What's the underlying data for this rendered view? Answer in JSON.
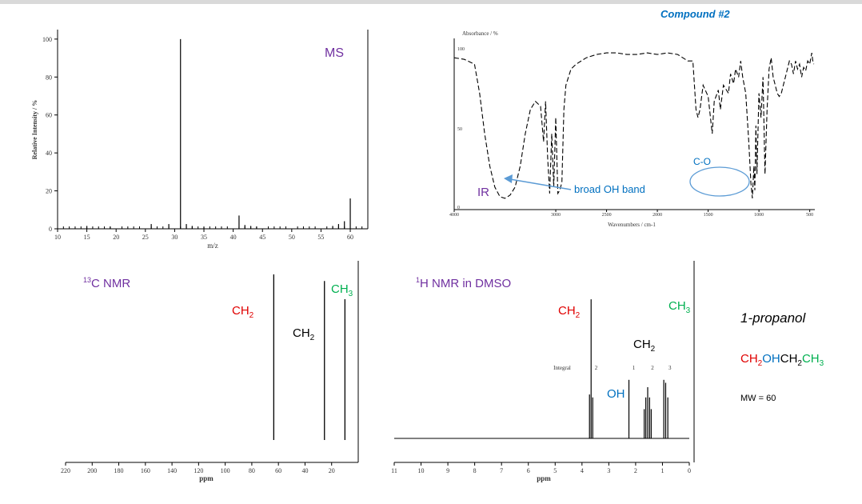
{
  "header": {
    "compound": "Compound #2",
    "compound_color": "#0070c0"
  },
  "chart_data": [
    {
      "type": "bar",
      "name": "MS",
      "title": "MS",
      "xlabel": "m/z",
      "ylabel": "Relative Intensity / %",
      "xlim": [
        10,
        63
      ],
      "ylim": [
        0,
        105
      ],
      "xticks": [
        "10",
        "15",
        "20",
        "25",
        "30",
        "35",
        "40",
        "45",
        "50",
        "55",
        "60"
      ],
      "yticks": [
        "0",
        "20",
        "40",
        "60",
        "80",
        "100"
      ],
      "peaks": [
        {
          "x": 15,
          "y": 1.5
        },
        {
          "x": 19,
          "y": 1.2
        },
        {
          "x": 26,
          "y": 2.5
        },
        {
          "x": 29,
          "y": 2.5
        },
        {
          "x": 31,
          "y": 100
        },
        {
          "x": 32,
          "y": 2.5
        },
        {
          "x": 33,
          "y": 1.5
        },
        {
          "x": 35,
          "y": 1.2
        },
        {
          "x": 41,
          "y": 7
        },
        {
          "x": 42,
          "y": 2
        },
        {
          "x": 43,
          "y": 1.5
        },
        {
          "x": 44,
          "y": 1.2
        },
        {
          "x": 57,
          "y": 1.5
        },
        {
          "x": 58,
          "y": 2.5
        },
        {
          "x": 59,
          "y": 4
        },
        {
          "x": 60,
          "y": 16
        }
      ]
    },
    {
      "type": "line",
      "name": "IR",
      "title": "IR",
      "ylabel_top": "Absorbance / %",
      "xlabel": "Wavenumbers / cm-1",
      "xlim": [
        4000,
        450
      ],
      "xticks": [
        "4000",
        "3000",
        "2500",
        "2000",
        "1500",
        "1000",
        "500"
      ],
      "yticks": [
        "0",
        "50",
        "100"
      ],
      "annotations": [
        "broad OH band",
        "C-O"
      ],
      "points": [
        [
          4000,
          92
        ],
        [
          3900,
          91
        ],
        [
          3800,
          88
        ],
        [
          3750,
          70
        ],
        [
          3700,
          45
        ],
        [
          3650,
          25
        ],
        [
          3600,
          12
        ],
        [
          3550,
          6
        ],
        [
          3500,
          5
        ],
        [
          3450,
          7
        ],
        [
          3400,
          12
        ],
        [
          3350,
          25
        ],
        [
          3300,
          45
        ],
        [
          3250,
          60
        ],
        [
          3200,
          65
        ],
        [
          3150,
          62
        ],
        [
          3120,
          40
        ],
        [
          3100,
          65
        ],
        [
          3080,
          30
        ],
        [
          3060,
          8
        ],
        [
          3040,
          45
        ],
        [
          3020,
          12
        ],
        [
          3000,
          55
        ],
        [
          2980,
          8
        ],
        [
          2960,
          10
        ],
        [
          2940,
          15
        ],
        [
          2920,
          60
        ],
        [
          2900,
          75
        ],
        [
          2850,
          85
        ],
        [
          2800,
          88
        ],
        [
          2700,
          92
        ],
        [
          2600,
          94
        ],
        [
          2500,
          95
        ],
        [
          2400,
          95
        ],
        [
          2300,
          94
        ],
        [
          2200,
          94
        ],
        [
          2100,
          95
        ],
        [
          2000,
          94
        ],
        [
          1900,
          95
        ],
        [
          1800,
          94
        ],
        [
          1700,
          90
        ],
        [
          1650,
          90
        ],
        [
          1620,
          60
        ],
        [
          1600,
          55
        ],
        [
          1580,
          60
        ],
        [
          1550,
          75
        ],
        [
          1500,
          68
        ],
        [
          1460,
          45
        ],
        [
          1440,
          65
        ],
        [
          1400,
          72
        ],
        [
          1380,
          60
        ],
        [
          1350,
          75
        ],
        [
          1300,
          70
        ],
        [
          1280,
          82
        ],
        [
          1250,
          76
        ],
        [
          1230,
          85
        ],
        [
          1200,
          80
        ],
        [
          1180,
          90
        ],
        [
          1160,
          80
        ],
        [
          1130,
          70
        ],
        [
          1100,
          40
        ],
        [
          1080,
          15
        ],
        [
          1065,
          5
        ],
        [
          1050,
          25
        ],
        [
          1040,
          10
        ],
        [
          1030,
          50
        ],
        [
          1020,
          20
        ],
        [
          1000,
          70
        ],
        [
          980,
          55
        ],
        [
          960,
          80
        ],
        [
          940,
          20
        ],
        [
          920,
          60
        ],
        [
          900,
          85
        ],
        [
          880,
          92
        ],
        [
          860,
          80
        ],
        [
          840,
          75
        ],
        [
          820,
          70
        ],
        [
          800,
          68
        ],
        [
          780,
          70
        ],
        [
          760,
          75
        ],
        [
          740,
          80
        ],
        [
          720,
          85
        ],
        [
          700,
          90
        ],
        [
          680,
          88
        ],
        [
          660,
          82
        ],
        [
          640,
          90
        ],
        [
          620,
          85
        ],
        [
          600,
          88
        ],
        [
          580,
          80
        ],
        [
          560,
          86
        ],
        [
          540,
          84
        ],
        [
          520,
          90
        ],
        [
          500,
          88
        ],
        [
          480,
          95
        ],
        [
          470,
          90
        ],
        [
          460,
          88
        ]
      ]
    },
    {
      "type": "bar",
      "name": "13C NMR",
      "title": "13C NMR",
      "xlabel": "ppm",
      "xlim": [
        220,
        0
      ],
      "xticks": [
        "220",
        "200",
        "180",
        "160",
        "140",
        "120",
        "100",
        "80",
        "60",
        "40",
        "20"
      ],
      "peaks": [
        {
          "x": 63.5,
          "y": 1.0,
          "label": "CH2"
        },
        {
          "x": 25.4,
          "y": 0.96,
          "label": "CH2"
        },
        {
          "x": 10.0,
          "y": 0.85,
          "label": "CH3"
        }
      ]
    },
    {
      "type": "bar",
      "name": "1H NMR in DMSO",
      "title": "1H NMR in DMSO",
      "xlabel": "ppm",
      "xlim": [
        11,
        0
      ],
      "xticks": [
        "11",
        "10",
        "9",
        "8",
        "7",
        "6",
        "5",
        "4",
        "3",
        "2",
        "1",
        "0"
      ],
      "integral_label": "Integral",
      "integrals": [
        {
          "x": 3.65,
          "label": "2"
        },
        {
          "x": 2.25,
          "label": "1"
        },
        {
          "x": 1.55,
          "label": "2"
        },
        {
          "x": 0.9,
          "label": "3"
        }
      ],
      "peaks": [
        {
          "x": 3.72,
          "y": 0.3
        },
        {
          "x": 3.66,
          "y": 0.95
        },
        {
          "x": 3.6,
          "y": 0.28
        },
        {
          "x": 2.25,
          "y": 0.4
        },
        {
          "x": 1.68,
          "y": 0.2
        },
        {
          "x": 1.62,
          "y": 0.28
        },
        {
          "x": 1.55,
          "y": 0.35
        },
        {
          "x": 1.48,
          "y": 0.28
        },
        {
          "x": 1.42,
          "y": 0.2
        },
        {
          "x": 0.95,
          "y": 0.4
        },
        {
          "x": 0.88,
          "y": 0.38
        },
        {
          "x": 0.8,
          "y": 0.28
        }
      ],
      "peak_labels": [
        "CH2",
        "OH",
        "CH2",
        "CH3"
      ]
    }
  ],
  "side_panel": {
    "name": "1-propanol",
    "formula_parts": [
      "CH",
      "2",
      "OH",
      "CH",
      "2",
      "CH",
      "3"
    ],
    "mw": "MW = 60"
  },
  "labels": {
    "ms": "MS",
    "ir": "IR",
    "ir_band": "broad OH band",
    "ir_co": "C-O",
    "c13_sup": "13",
    "c13_rest": "C NMR",
    "h1_sup": "1",
    "h1_rest": "H NMR in DMSO",
    "ch": "CH",
    "sub2": "2",
    "sub3": "3",
    "oh": "OH"
  },
  "colors": {
    "title": "#7030a0",
    "red": "#e00000",
    "blue": "#0070c0",
    "green": "#00b050",
    "arrow": "#5b9bd5"
  }
}
